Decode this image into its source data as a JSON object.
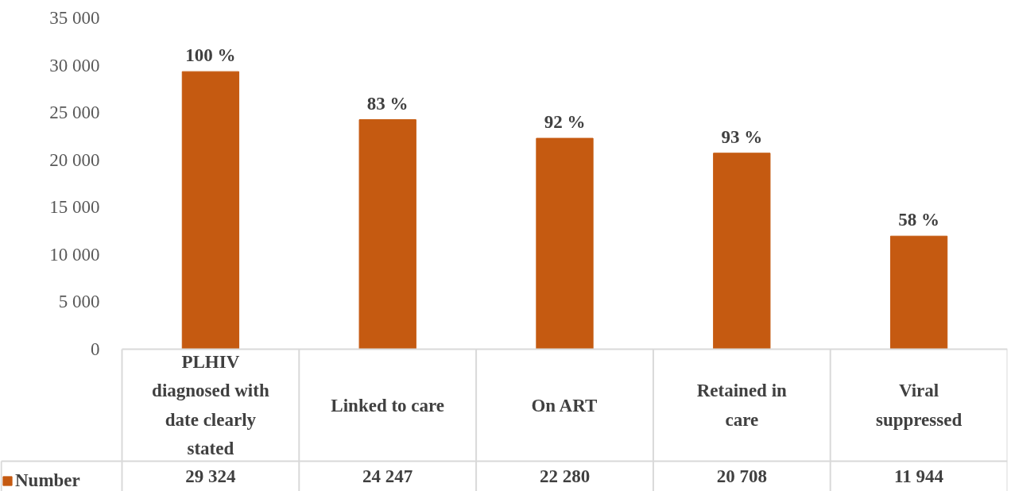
{
  "chart_data": {
    "type": "bar",
    "categories": [
      "PLHIV diagnosed with date clearly stated",
      "Linked to care",
      "On ART",
      "Retained in care",
      "Viral suppressed"
    ],
    "series": [
      {
        "name": "Number",
        "color": "#c55a11",
        "values": [
          29324,
          24247,
          22280,
          20708,
          11944
        ]
      }
    ],
    "value_labels": [
      "100 %",
      "83 %",
      "92 %",
      "93 %",
      "58 %"
    ],
    "data_labels": true,
    "legend": "bottom left",
    "ylim": [
      0,
      35000
    ],
    "yticks": [
      {
        "value": 0,
        "label": "0"
      },
      {
        "value": 5000,
        "label": "5 000"
      },
      {
        "value": 10000,
        "label": "10 000"
      },
      {
        "value": 15000,
        "label": "15 000"
      },
      {
        "value": 20000,
        "label": "20 000"
      },
      {
        "value": 25000,
        "label": "25 000"
      },
      {
        "value": 30000,
        "label": "30 000"
      },
      {
        "value": 35000,
        "label": "35 000"
      }
    ]
  }
}
